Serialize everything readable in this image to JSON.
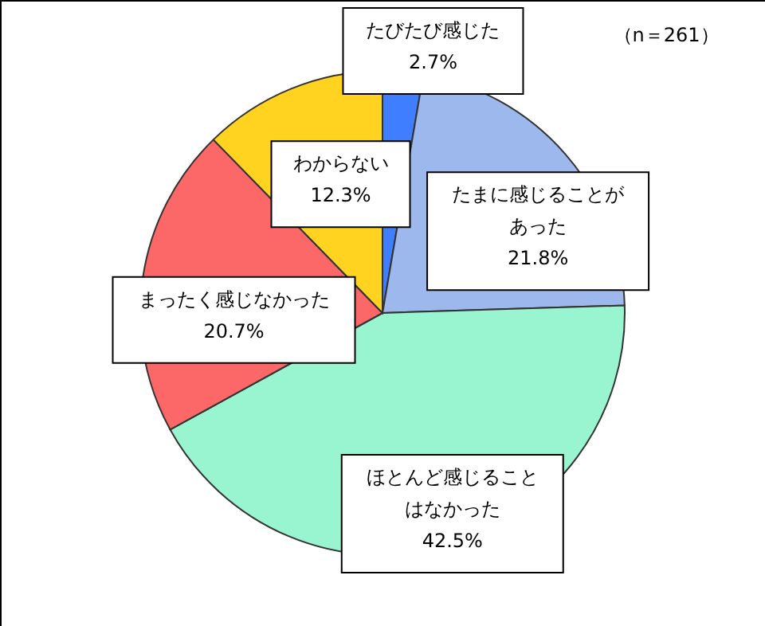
{
  "chart_data": {
    "type": "pie",
    "categories": [
      "たびたび感じた",
      "たまに感じることがあった",
      "ほとんど感じることはなかった",
      "まったく感じなかった",
      "わからない"
    ],
    "values": [
      2.7,
      21.8,
      42.5,
      20.7,
      12.3
    ],
    "value_labels": [
      "2.7%",
      "21.8%",
      "42.5%",
      "20.7%",
      "12.3%"
    ],
    "colors": [
      "#3f7fff",
      "#9db8ec",
      "#99f5cf",
      "#fc6868",
      "#ffd320"
    ],
    "annotations": [
      "（n＝261）"
    ]
  }
}
